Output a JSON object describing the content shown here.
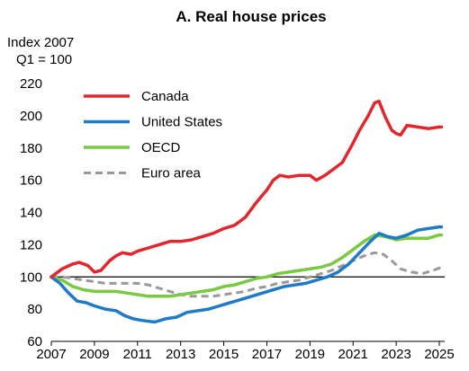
{
  "chart_data": {
    "type": "line",
    "title": "A. Real house prices",
    "ylabel_line1": "Index 2007",
    "ylabel_line2": "Q1 = 100",
    "xlabel": "",
    "xlim": [
      2007,
      2025.25
    ],
    "ylim": [
      60,
      220
    ],
    "yticks": [
      60,
      80,
      100,
      120,
      140,
      160,
      180,
      200,
      220
    ],
    "xticks": [
      2007,
      2009,
      2011,
      2013,
      2015,
      2017,
      2019,
      2021,
      2023,
      2025
    ],
    "reference_line": 100,
    "legend_position": "top-left",
    "series": [
      {
        "name": "Canada",
        "color": "#e3262d",
        "style": "solid",
        "points": [
          [
            2007,
            100
          ],
          [
            2007.5,
            105
          ],
          [
            2008,
            108
          ],
          [
            2008.3,
            109
          ],
          [
            2008.7,
            107
          ],
          [
            2009,
            103
          ],
          [
            2009.3,
            104
          ],
          [
            2009.7,
            110
          ],
          [
            2010,
            113
          ],
          [
            2010.3,
            115
          ],
          [
            2010.7,
            114
          ],
          [
            2011,
            116
          ],
          [
            2011.5,
            118
          ],
          [
            2012,
            120
          ],
          [
            2012.5,
            122
          ],
          [
            2013,
            122
          ],
          [
            2013.5,
            123
          ],
          [
            2014,
            125
          ],
          [
            2014.5,
            127
          ],
          [
            2015,
            130
          ],
          [
            2015.5,
            132
          ],
          [
            2016,
            137
          ],
          [
            2016.5,
            146
          ],
          [
            2017,
            154
          ],
          [
            2017.3,
            160
          ],
          [
            2017.6,
            163
          ],
          [
            2018,
            162
          ],
          [
            2018.5,
            163
          ],
          [
            2019,
            163
          ],
          [
            2019.3,
            160
          ],
          [
            2019.7,
            163
          ],
          [
            2020,
            166
          ],
          [
            2020.5,
            171
          ],
          [
            2021,
            183
          ],
          [
            2021.3,
            191
          ],
          [
            2021.7,
            200
          ],
          [
            2022,
            208
          ],
          [
            2022.2,
            209
          ],
          [
            2022.5,
            199
          ],
          [
            2022.8,
            191
          ],
          [
            2023,
            189
          ],
          [
            2023.2,
            188
          ],
          [
            2023.5,
            194
          ],
          [
            2024,
            193
          ],
          [
            2024.5,
            192
          ],
          [
            2025,
            193
          ],
          [
            2025.1,
            193
          ]
        ]
      },
      {
        "name": "United States",
        "color": "#1f7bc8",
        "style": "solid",
        "points": [
          [
            2007,
            100
          ],
          [
            2007.4,
            96
          ],
          [
            2007.8,
            90
          ],
          [
            2008.2,
            85
          ],
          [
            2008.6,
            84
          ],
          [
            2009,
            82
          ],
          [
            2009.5,
            80
          ],
          [
            2010,
            79
          ],
          [
            2010.4,
            76
          ],
          [
            2010.8,
            74
          ],
          [
            2011.2,
            73
          ],
          [
            2011.8,
            72
          ],
          [
            2012.3,
            74
          ],
          [
            2012.8,
            75
          ],
          [
            2013.3,
            78
          ],
          [
            2013.8,
            79
          ],
          [
            2014.3,
            80
          ],
          [
            2014.8,
            82
          ],
          [
            2015.3,
            84
          ],
          [
            2015.8,
            86
          ],
          [
            2016.3,
            88
          ],
          [
            2016.8,
            90
          ],
          [
            2017.3,
            92
          ],
          [
            2017.8,
            94
          ],
          [
            2018.3,
            95
          ],
          [
            2018.8,
            96
          ],
          [
            2019.3,
            98
          ],
          [
            2019.8,
            100
          ],
          [
            2020.3,
            103
          ],
          [
            2020.8,
            108
          ],
          [
            2021.3,
            115
          ],
          [
            2021.8,
            122
          ],
          [
            2022.2,
            127
          ],
          [
            2022.6,
            125
          ],
          [
            2023,
            124
          ],
          [
            2023.5,
            126
          ],
          [
            2024,
            129
          ],
          [
            2024.5,
            130
          ],
          [
            2025,
            131
          ],
          [
            2025.1,
            131
          ]
        ]
      },
      {
        "name": "OECD",
        "color": "#7ac943",
        "style": "solid",
        "points": [
          [
            2007,
            100
          ],
          [
            2007.5,
            98
          ],
          [
            2008,
            94
          ],
          [
            2008.5,
            92
          ],
          [
            2009,
            91
          ],
          [
            2009.5,
            91
          ],
          [
            2010,
            91
          ],
          [
            2010.5,
            90
          ],
          [
            2011,
            89
          ],
          [
            2011.5,
            88
          ],
          [
            2012,
            88
          ],
          [
            2012.5,
            88
          ],
          [
            2013,
            89
          ],
          [
            2013.5,
            90
          ],
          [
            2014,
            91
          ],
          [
            2014.5,
            92
          ],
          [
            2015,
            94
          ],
          [
            2015.5,
            95
          ],
          [
            2016,
            97
          ],
          [
            2016.5,
            99
          ],
          [
            2017,
            100
          ],
          [
            2017.5,
            102
          ],
          [
            2018,
            103
          ],
          [
            2018.5,
            104
          ],
          [
            2019,
            105
          ],
          [
            2019.5,
            106
          ],
          [
            2020,
            108
          ],
          [
            2020.5,
            112
          ],
          [
            2021,
            117
          ],
          [
            2021.5,
            122
          ],
          [
            2022,
            126
          ],
          [
            2022.5,
            125
          ],
          [
            2023,
            123
          ],
          [
            2023.5,
            124
          ],
          [
            2024,
            124
          ],
          [
            2024.5,
            124
          ],
          [
            2025,
            126
          ],
          [
            2025.1,
            126
          ]
        ]
      },
      {
        "name": "Euro area",
        "color": "#999999",
        "style": "dashed",
        "points": [
          [
            2007,
            100
          ],
          [
            2007.5,
            100
          ],
          [
            2008,
            99
          ],
          [
            2008.5,
            98
          ],
          [
            2009,
            97
          ],
          [
            2009.5,
            96
          ],
          [
            2010,
            96
          ],
          [
            2010.5,
            96
          ],
          [
            2011,
            96
          ],
          [
            2011.5,
            95
          ],
          [
            2012,
            93
          ],
          [
            2012.5,
            91
          ],
          [
            2013,
            89
          ],
          [
            2013.5,
            88
          ],
          [
            2014,
            88
          ],
          [
            2014.5,
            88
          ],
          [
            2015,
            89
          ],
          [
            2015.5,
            90
          ],
          [
            2016,
            91
          ],
          [
            2016.5,
            93
          ],
          [
            2017,
            94
          ],
          [
            2017.5,
            96
          ],
          [
            2018,
            97
          ],
          [
            2018.5,
            98
          ],
          [
            2019,
            100
          ],
          [
            2019.5,
            102
          ],
          [
            2020,
            104
          ],
          [
            2020.5,
            107
          ],
          [
            2021,
            110
          ],
          [
            2021.5,
            113
          ],
          [
            2022,
            115
          ],
          [
            2022.4,
            114
          ],
          [
            2022.8,
            110
          ],
          [
            2023.2,
            105
          ],
          [
            2023.7,
            103
          ],
          [
            2024.2,
            102
          ],
          [
            2024.7,
            104
          ],
          [
            2025.1,
            106
          ]
        ]
      }
    ]
  }
}
